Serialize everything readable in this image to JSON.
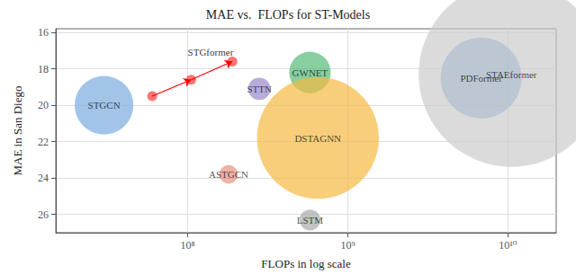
{
  "chart_data": {
    "type": "scatter",
    "title": "MAE vs.  FLOPs for ST-Models",
    "x_label": "FLOPs in log scale",
    "y_label": "MAE in San Diego",
    "log": "x",
    "grid": true,
    "xlim": [
      15000000.0,
      20000000000.0
    ],
    "xticks": [
      {
        "value": 100000000.0,
        "label": "10⁸"
      },
      {
        "value": 1000000000.0,
        "label": "10⁹"
      },
      {
        "value": 10000000000.0,
        "label": "10¹⁰"
      }
    ],
    "ylim": [
      27.0,
      15.8
    ],
    "yticks": [
      16,
      18,
      20,
      22,
      24,
      26
    ],
    "series": [
      {
        "name": "STGCN",
        "type": "scatter",
        "x": [
          30000000.0
        ],
        "values": [
          20.0
        ],
        "size": [
          2200
        ],
        "color": "#7aabdf"
      },
      {
        "name": "STTN",
        "type": "scatter",
        "x": [
          280000000.0
        ],
        "values": [
          19.1
        ],
        "size": [
          320
        ],
        "color": "#9988cc"
      },
      {
        "name": "GWNET",
        "type": "scatter",
        "x": [
          580000000.0
        ],
        "values": [
          18.2
        ],
        "size": [
          1100
        ],
        "color": "#55bb77"
      },
      {
        "name": "ASTGCN",
        "type": "scatter",
        "x": [
          180000000.0
        ],
        "values": [
          23.8
        ],
        "size": [
          220
        ],
        "color": "#e89080"
      },
      {
        "name": "DSTAGNN",
        "type": "scatter",
        "x": [
          650000000.0
        ],
        "values": [
          21.8
        ],
        "size": [
          9500
        ],
        "color": "#f5b942"
      },
      {
        "name": "LSTM",
        "type": "scatter",
        "x": [
          580000000.0
        ],
        "values": [
          26.3
        ],
        "size": [
          280
        ],
        "color": "#aaaaaa"
      },
      {
        "name": "PDFormer",
        "type": "scatter",
        "x": [
          6800000000.0
        ],
        "values": [
          18.5
        ],
        "size": [
          4200
        ],
        "color": "#6a9fd8"
      },
      {
        "name": "STAEformer",
        "type": "scatter",
        "x": [
          10500000000.0
        ],
        "values": [
          18.3
        ],
        "size": [
          22000
        ],
        "color": "#cccccc"
      },
      {
        "type": "line",
        "marker": "arrow",
        "x": [
          60000000.0,
          105000000.0,
          190000000.0
        ],
        "values": [
          19.5,
          18.6,
          17.6
        ],
        "color": "red"
      }
    ],
    "annotations": [
      {
        "text": "STGformer",
        "x": 100000000.0,
        "y": 17.35
      }
    ]
  }
}
